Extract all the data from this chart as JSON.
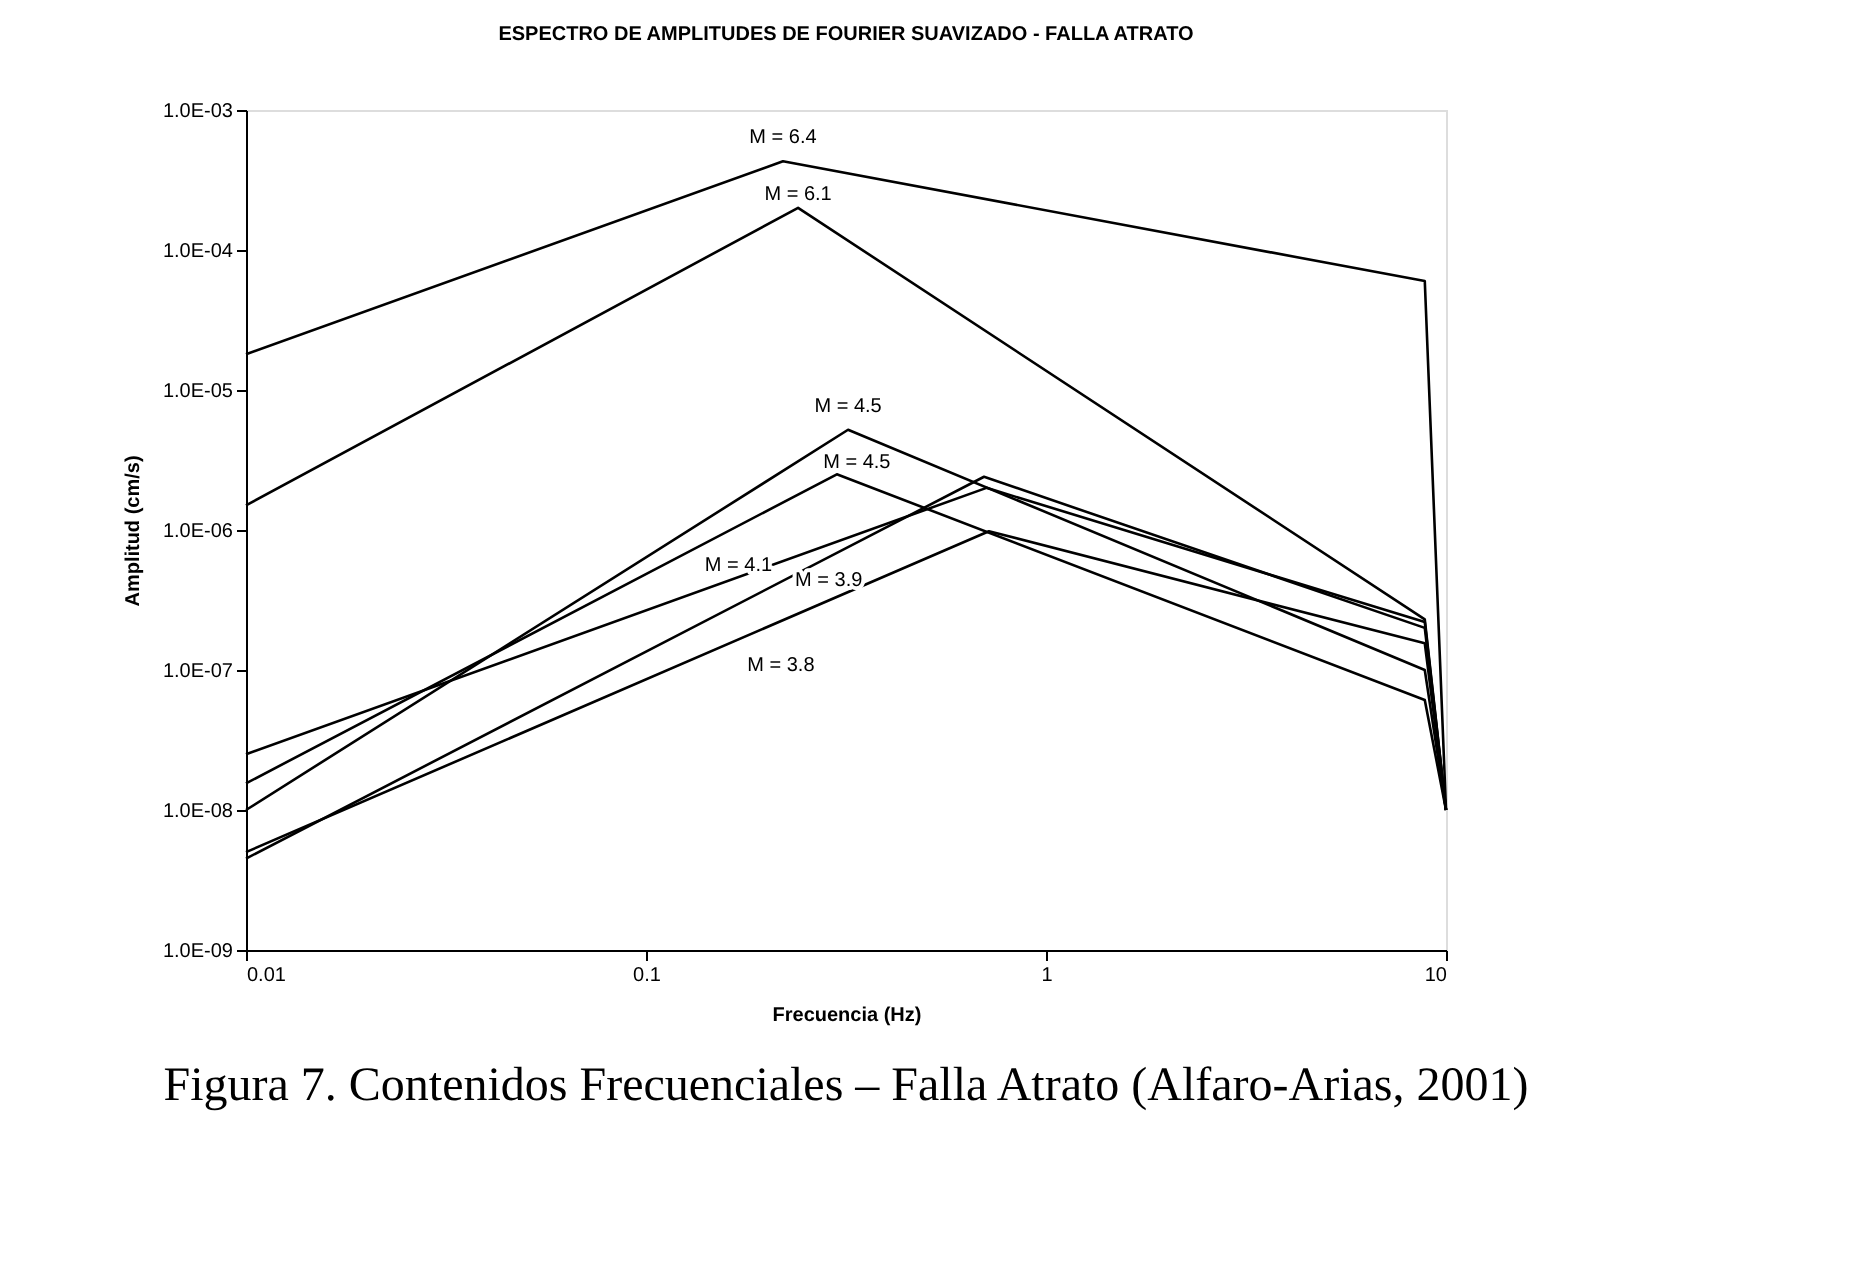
{
  "chart_data": {
    "type": "line",
    "title": "ESPECTRO DE AMPLITUDES DE FOURIER SUAVIZADO - FALLA ATRATO",
    "xlabel": "Frecuencia (Hz)",
    "ylabel": "Amplitud (cm/s)",
    "log": "xy",
    "grid": false,
    "legend": false,
    "marker": "none",
    "line_style": "solid",
    "xlim": [
      0.01,
      10
    ],
    "xticks": [
      0.01,
      0.1,
      1,
      10
    ],
    "ylim": [
      1e-09,
      0.001
    ],
    "yticks": [
      {
        "value": 1e-09,
        "label": "1.0E-09"
      },
      {
        "value": 1e-08,
        "label": "1.0E-08"
      },
      {
        "value": 1e-07,
        "label": "1.0E-07"
      },
      {
        "value": 1e-06,
        "label": "1.0E-06"
      },
      {
        "value": 1e-05,
        "label": "1.0E-05"
      },
      {
        "value": 0.0001,
        "label": "1.0E-04"
      },
      {
        "value": 0.001,
        "label": "1.0E-03"
      }
    ],
    "series": [
      {
        "name": "M = 6.4",
        "color": "#000000",
        "x": [
          0.01,
          0.22,
          8.85,
          10
        ],
        "values": [
          1.8e-05,
          0.00043,
          6e-05,
          1e-08
        ]
      },
      {
        "name": "M = 6.1",
        "color": "#000000",
        "x": [
          0.01,
          0.24,
          8.85,
          10
        ],
        "values": [
          1.5e-06,
          0.0002,
          2.3e-07,
          1e-08
        ]
      },
      {
        "name": "M = 4.5",
        "color": "#000000",
        "x": [
          0.01,
          0.32,
          8.85,
          10
        ],
        "values": [
          1e-08,
          5.2e-06,
          1e-07,
          1e-08
        ]
      },
      {
        "name": "M = 4.5",
        "color": "#000000",
        "x": [
          0.01,
          0.3,
          8.85,
          10
        ],
        "values": [
          1.55e-08,
          2.5e-06,
          6.1e-08,
          1e-08
        ]
      },
      {
        "name": "M = 4.1",
        "color": "#000000",
        "x": [
          0.01,
          0.71,
          8.85,
          10
        ],
        "values": [
          2.5e-08,
          2e-06,
          2.2e-07,
          1e-08
        ]
      },
      {
        "name": "M = 3.9",
        "color": "#000000",
        "x": [
          0.01,
          0.7,
          8.85,
          10
        ],
        "values": [
          4.5e-09,
          2.4e-06,
          2e-07,
          1e-08
        ]
      },
      {
        "name": "M = 3.8",
        "color": "#000000",
        "x": [
          0.01,
          0.72,
          8.85,
          10
        ],
        "values": [
          5e-09,
          9.8e-07,
          1.55e-07,
          1e-08
        ]
      }
    ],
    "annotations": [
      "Figura 7. Contenidos Frecuenciales – Falla Atrato (Alfaro-Arias, 2001)"
    ]
  }
}
